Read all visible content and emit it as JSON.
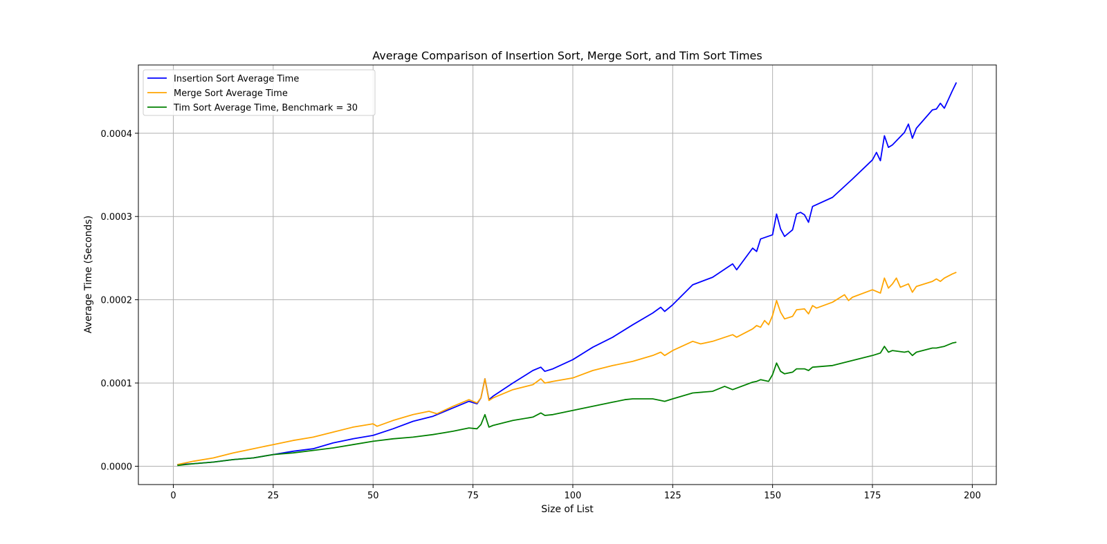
{
  "chart_data": {
    "type": "line",
    "title": "Average Comparison of Insertion Sort, Merge Sort, and Tim Sort Times",
    "xlabel": "Size of List",
    "ylabel": "Average Time (Seconds)",
    "xlim": [
      -8.75,
      206
    ],
    "ylim": [
      -2.2e-05,
      0.000482
    ],
    "xticks": [
      0,
      25,
      50,
      75,
      100,
      125,
      150,
      175,
      200
    ],
    "xtick_labels": [
      "0",
      "25",
      "50",
      "75",
      "100",
      "125",
      "150",
      "175",
      "200"
    ],
    "yticks": [
      0,
      0.0001,
      0.0002,
      0.0003,
      0.0004
    ],
    "ytick_labels": [
      "0.0000",
      "0.0001",
      "0.0002",
      "0.0003",
      "0.0004"
    ],
    "grid": true,
    "legend_position": "top-left",
    "series": [
      {
        "name": "Insertion Sort Average Time",
        "color": "#0000ff",
        "x": [
          1,
          5,
          10,
          15,
          20,
          25,
          30,
          35,
          40,
          45,
          50,
          55,
          60,
          65,
          70,
          74,
          76,
          77,
          78,
          79,
          80,
          85,
          90,
          92,
          93,
          95,
          100,
          105,
          110,
          115,
          120,
          122,
          123,
          125,
          130,
          135,
          140,
          141,
          145,
          146,
          147,
          150,
          151,
          152,
          153,
          155,
          156,
          157,
          158,
          159,
          160,
          165,
          170,
          175,
          176,
          177,
          178,
          179,
          180,
          183,
          184,
          185,
          186,
          190,
          191,
          192,
          193,
          195,
          196
        ],
        "y": [
          2e-06,
          3e-06,
          5e-06,
          8e-06,
          1e-05,
          1.4e-05,
          1.8e-05,
          2.1e-05,
          2.8e-05,
          3.3e-05,
          3.7e-05,
          4.5e-05,
          5.4e-05,
          6e-05,
          7e-05,
          7.8e-05,
          7.5e-05,
          8.2e-05,
          0.000105,
          8e-05,
          8.4e-05,
          0.0001,
          0.000115,
          0.000119,
          0.000114,
          0.000117,
          0.000128,
          0.000143,
          0.000155,
          0.00017,
          0.000184,
          0.000191,
          0.000186,
          0.000194,
          0.000218,
          0.000227,
          0.000243,
          0.000236,
          0.000262,
          0.000258,
          0.000273,
          0.000278,
          0.000303,
          0.000285,
          0.000276,
          0.000284,
          0.000303,
          0.000305,
          0.000302,
          0.000293,
          0.000312,
          0.000323,
          0.000345,
          0.000368,
          0.000377,
          0.000367,
          0.000397,
          0.000383,
          0.000386,
          0.000401,
          0.000411,
          0.000394,
          0.000406,
          0.000428,
          0.000429,
          0.000436,
          0.00043,
          0.000451,
          0.000461
        ]
      },
      {
        "name": "Merge Sort Average Time",
        "color": "#ffa500",
        "x": [
          1,
          5,
          10,
          15,
          20,
          25,
          30,
          35,
          40,
          45,
          50,
          51,
          55,
          60,
          64,
          66,
          70,
          74,
          76,
          77,
          78,
          79,
          80,
          85,
          90,
          92,
          93,
          95,
          100,
          105,
          110,
          115,
          120,
          122,
          123,
          125,
          130,
          132,
          135,
          140,
          141,
          145,
          146,
          147,
          148,
          149,
          150,
          151,
          152,
          153,
          155,
          156,
          158,
          159,
          160,
          161,
          165,
          168,
          169,
          170,
          175,
          177,
          178,
          179,
          180,
          181,
          182,
          184,
          185,
          186,
          190,
          191,
          192,
          193,
          195,
          196
        ],
        "y": [
          2e-06,
          6e-06,
          1e-05,
          1.6e-05,
          2.1e-05,
          2.6e-05,
          3.1e-05,
          3.5e-05,
          4.1e-05,
          4.7e-05,
          5.1e-05,
          4.8e-05,
          5.5e-05,
          6.2e-05,
          6.6e-05,
          6.3e-05,
          7.2e-05,
          8e-05,
          7.6e-05,
          8.2e-05,
          0.000105,
          7.9e-05,
          8.2e-05,
          9.2e-05,
          9.8e-05,
          0.000105,
          0.0001,
          0.000102,
          0.000106,
          0.000115,
          0.000121,
          0.000126,
          0.000133,
          0.000137,
          0.000133,
          0.000139,
          0.00015,
          0.000147,
          0.00015,
          0.000158,
          0.000155,
          0.000165,
          0.000169,
          0.000167,
          0.000175,
          0.00017,
          0.000181,
          0.000199,
          0.000185,
          0.000177,
          0.00018,
          0.000188,
          0.000189,
          0.000183,
          0.000193,
          0.00019,
          0.000197,
          0.000206,
          0.000199,
          0.000203,
          0.000212,
          0.000208,
          0.000226,
          0.000214,
          0.000219,
          0.000226,
          0.000215,
          0.000219,
          0.000209,
          0.000216,
          0.000222,
          0.000225,
          0.000222,
          0.000226,
          0.000231,
          0.000233
        ]
      },
      {
        "name": "Tim Sort Average Time, Benchmark = 30",
        "color": "#008000",
        "x": [
          1,
          5,
          10,
          15,
          20,
          25,
          30,
          35,
          40,
          45,
          50,
          55,
          60,
          65,
          70,
          74,
          76,
          77,
          78,
          79,
          80,
          85,
          90,
          92,
          93,
          95,
          100,
          105,
          110,
          113,
          115,
          120,
          122,
          123,
          125,
          130,
          135,
          138,
          140,
          145,
          146,
          147,
          149,
          150,
          151,
          152,
          153,
          155,
          156,
          158,
          159,
          160,
          165,
          170,
          175,
          177,
          178,
          179,
          180,
          183,
          184,
          185,
          186,
          190,
          191,
          192,
          193,
          195,
          196
        ],
        "y": [
          1e-06,
          3e-06,
          5e-06,
          8e-06,
          1e-05,
          1.4e-05,
          1.6e-05,
          1.9e-05,
          2.2e-05,
          2.6e-05,
          3e-05,
          3.3e-05,
          3.5e-05,
          3.8e-05,
          4.2e-05,
          4.6e-05,
          4.5e-05,
          5e-05,
          6.2e-05,
          4.7e-05,
          4.9e-05,
          5.5e-05,
          5.9e-05,
          6.4e-05,
          6.1e-05,
          6.2e-05,
          6.7e-05,
          7.2e-05,
          7.7e-05,
          8e-05,
          8.1e-05,
          8.1e-05,
          7.9e-05,
          7.8e-05,
          8.1e-05,
          8.8e-05,
          9e-05,
          9.6e-05,
          9.2e-05,
          0.000101,
          0.000102,
          0.000104,
          0.000102,
          0.00011,
          0.000124,
          0.000114,
          0.000111,
          0.000113,
          0.000117,
          0.000117,
          0.000115,
          0.000119,
          0.000121,
          0.000127,
          0.000133,
          0.000136,
          0.000144,
          0.000137,
          0.000139,
          0.000137,
          0.000138,
          0.000133,
          0.000137,
          0.000142,
          0.000142,
          0.000143,
          0.000144,
          0.000148,
          0.000149
        ]
      }
    ]
  }
}
